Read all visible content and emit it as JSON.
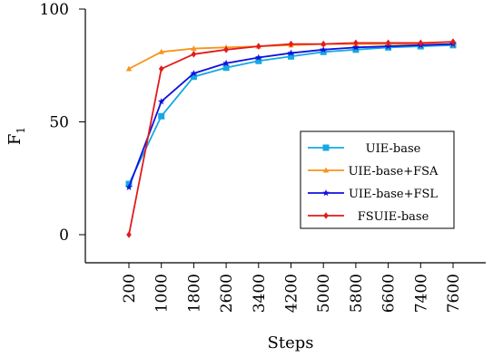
{
  "chart_data": {
    "type": "line",
    "xlabel": "Steps",
    "ylabel": "F",
    "ylabel_subscript": "1",
    "ylim": [
      0,
      100
    ],
    "yticks": [
      0,
      50,
      100
    ],
    "grid": false,
    "legend_position": "center-right",
    "categories": [
      "200",
      "1000",
      "1800",
      "2600",
      "3400",
      "4200",
      "5000",
      "5800",
      "6600",
      "7400",
      "7600"
    ],
    "series": [
      {
        "name": "UIE-base",
        "color": "#17a8e3",
        "marker": "square",
        "values": [
          22.5,
          52.5,
          70,
          74,
          77,
          79,
          81,
          82,
          83,
          83.5,
          84
        ]
      },
      {
        "name": "UIE-base+FSA",
        "color": "#f7941d",
        "marker": "triangle",
        "values": [
          73.5,
          81,
          82.5,
          83,
          83.5,
          84,
          84.5,
          84.5,
          84.5,
          84.5,
          84.5
        ]
      },
      {
        "name": "UIE-base+FSL",
        "color": "#1010e0",
        "marker": "star",
        "values": [
          21,
          59,
          71.5,
          76,
          78.5,
          80.5,
          82,
          83,
          83.5,
          84,
          84.5
        ]
      },
      {
        "name": "FSUIE-base",
        "color": "#e31a1c",
        "marker": "diamond",
        "values": [
          0,
          73.5,
          80,
          82,
          83.5,
          84.5,
          84.5,
          85,
          85,
          85,
          85.5
        ]
      }
    ]
  }
}
